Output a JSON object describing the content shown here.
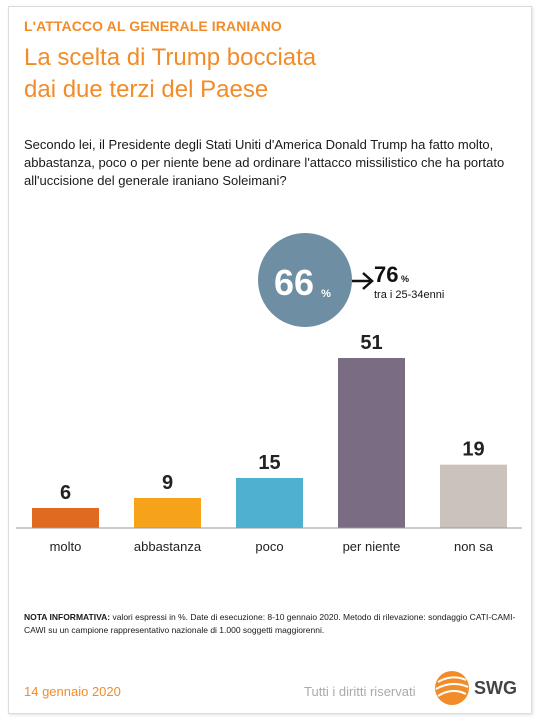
{
  "header": {
    "kicker": "L'ATTACCO AL GENERALE IRANIANO",
    "headline_line1": "La scelta di Trump bocciata",
    "headline_line2": "dai due terzi del Paese",
    "question": "Secondo lei, il Presidente degli Stati Uniti d'America Donald Trump ha fatto molto, abbastanza, poco o per niente bene ad ordinare l'attacco missilistico che ha portato all'uccisione del generale iraniano Soleimani?"
  },
  "highlight": {
    "main_value": "66",
    "main_unit": "%",
    "secondary_value": "76",
    "secondary_unit": "%",
    "secondary_label": "tra i 25-34enni"
  },
  "chart_data": {
    "type": "bar",
    "categories": [
      "molto",
      "abbastanza",
      "poco",
      "per niente",
      "non sa"
    ],
    "values": [
      6,
      9,
      15,
      51,
      19
    ],
    "colors": [
      "#e06a1f",
      "#f7a21b",
      "#4fb0cf",
      "#7a6c82",
      "#cbc2bb"
    ],
    "ylim": [
      0,
      51
    ]
  },
  "note": {
    "label": "NOTA INFORMATIVA:",
    "text": " valori espressi in %. Date di esecuzione: 8-10 gennaio 2020. Metodo di rilevazione: sondaggio CATI-CAMI-CAWI su un campione rappresentativo nazionale di 1.000 soggetti maggiorenni."
  },
  "footer": {
    "date": "14 gennaio 2020",
    "rights": "Tutti i diritti riservati",
    "brand": "SWG"
  },
  "colors": {
    "accent": "#f28c28",
    "circle": "#6e8ea4"
  }
}
